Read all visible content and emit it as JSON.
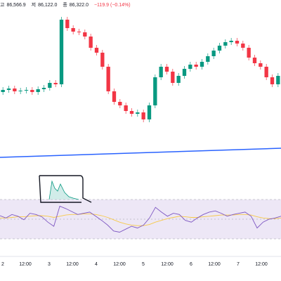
{
  "legend": {
    "items": [
      {
        "label": "고",
        "value": "86,566.9"
      },
      {
        "label": "저",
        "value": "86,122.0"
      },
      {
        "label": "종",
        "value": "86,322.0"
      }
    ],
    "change": "−119.9 (−0.14%)"
  },
  "colors": {
    "up": "#089981",
    "down": "#f23645",
    "trendline": "#2962ff",
    "annotation": "#131722",
    "rsi_line": "#7e57c2",
    "rsi_ma": "#f7c948",
    "rsi_band_fill": "#ede7f6",
    "grid": "#e0e3eb"
  },
  "chart_data": [
    {
      "type": "candlestick",
      "title": "",
      "x_ticks": [
        "2",
        "12:00",
        "3",
        "12:00",
        "4",
        "12:00",
        "5",
        "12:00",
        "6",
        "12:00",
        "7",
        "12:00"
      ],
      "close_path": [
        128,
        126,
        130,
        129,
        128,
        131,
        127,
        125,
        118,
        120,
        28,
        40,
        45,
        46,
        52,
        68,
        75,
        95,
        130,
        145,
        150,
        158,
        162,
        160,
        170,
        150,
        110,
        95,
        102,
        118,
        108,
        98,
        92,
        95,
        88,
        80,
        72,
        65,
        60,
        58,
        62,
        68,
        82,
        90,
        95,
        110,
        120,
        108
      ]
    },
    {
      "type": "line",
      "title": "",
      "indicator": "RSI",
      "levels": [
        70,
        50,
        30
      ],
      "rsi": [
        56,
        52,
        58,
        55,
        49,
        60,
        58,
        54,
        45,
        38,
        72,
        68,
        63,
        58,
        60,
        62,
        55,
        48,
        40,
        30,
        28,
        33,
        38,
        35,
        40,
        52,
        70,
        62,
        55,
        60,
        58,
        48,
        45,
        52,
        58,
        62,
        64,
        60,
        55,
        58,
        60,
        62,
        55,
        35,
        45,
        50,
        52,
        55
      ],
      "ma": [
        52,
        52,
        53,
        54,
        54,
        55,
        56,
        56,
        55,
        53,
        55,
        57,
        58,
        58,
        59,
        59,
        58,
        56,
        53,
        49,
        45,
        42,
        40,
        39,
        39,
        41,
        45,
        48,
        51,
        53,
        55,
        54,
        53,
        53,
        54,
        55,
        56,
        57,
        57,
        57,
        58,
        58,
        57,
        54,
        52,
        51,
        51,
        52
      ]
    }
  ]
}
